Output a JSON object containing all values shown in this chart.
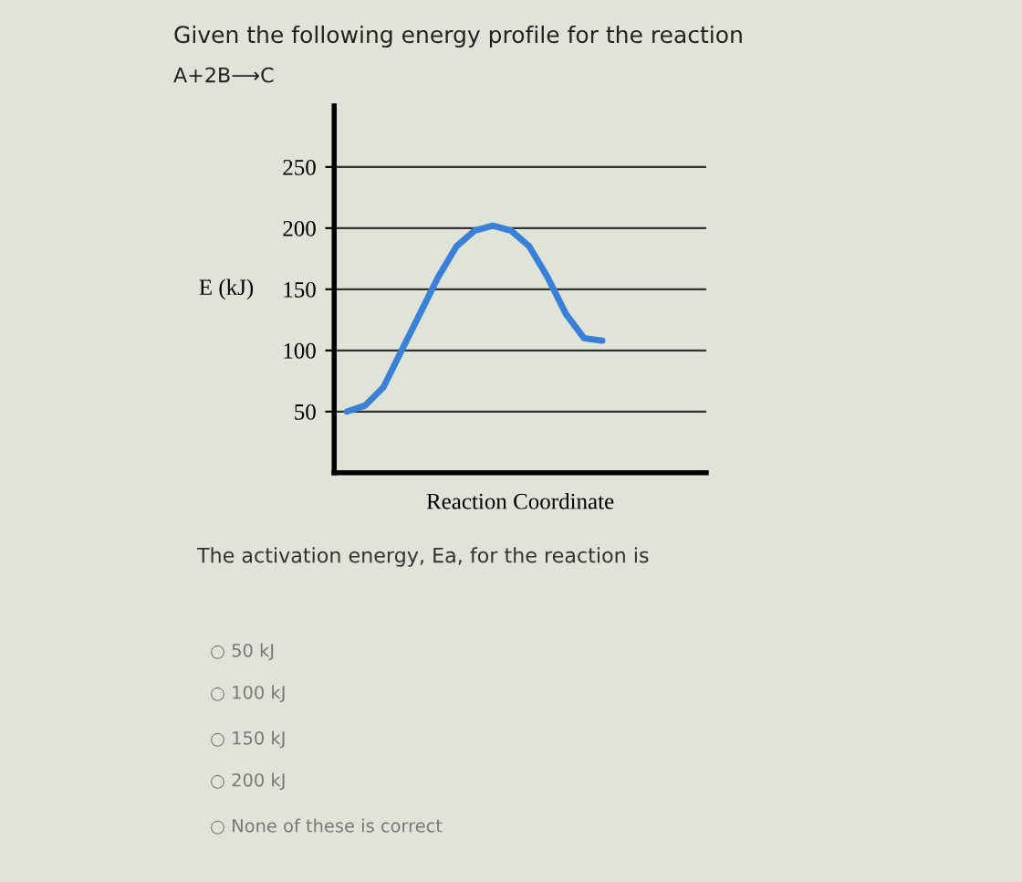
{
  "chart_data": {
    "type": "line",
    "title": "Given the following energy profile for the reaction",
    "subtitle": "A+2B⟶C",
    "xlabel": "Reaction Coordinate",
    "ylabel": "E (kJ)",
    "categories": [
      null,
      null,
      null,
      null,
      null,
      null,
      null,
      null,
      null,
      null,
      null,
      null,
      null,
      null,
      null,
      null,
      null,
      null,
      null,
      null
    ],
    "series": [
      {
        "color": "#3a7fd8",
        "values": [
          50,
          55,
          70,
          100,
          130,
          160,
          185,
          198,
          202,
          198,
          185,
          160,
          130,
          110,
          108,
          null,
          null,
          null,
          null,
          null
        ]
      }
    ],
    "ylim": [
      0,
      300
    ],
    "yticks": [
      50,
      100,
      150,
      200,
      250
    ],
    "grid": "y",
    "tick_labels": "y",
    "marker": "none",
    "line_style": "solid",
    "annotations": [
      "The activation energy, Ea, for the reaction is",
      "○ 50 kJ",
      "○ 100 kJ",
      "○ 150 kJ",
      "○ 200 kJ",
      "○ None of these is correct"
    ]
  }
}
